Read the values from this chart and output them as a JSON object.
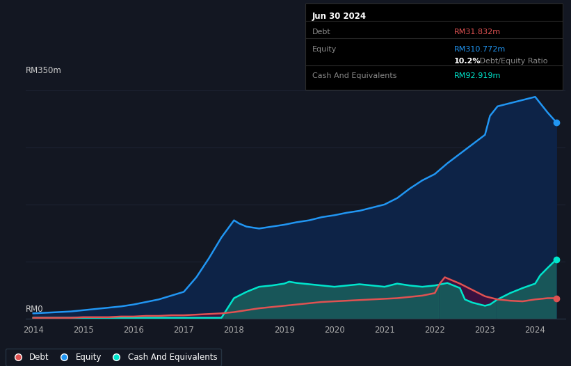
{
  "background_color": "#131722",
  "plot_bg_color": "#131722",
  "grid_color": "#1e2535",
  "line_color_debt": "#e05252",
  "line_color_equity": "#2196f3",
  "line_color_cash": "#00e5cc",
  "fill_color_equity": "#0d2347",
  "fill_color_cash": "#1a5c5c",
  "fill_color_overlap": "#3d1040",
  "tooltip_bg": "#000000",
  "tooltip_border": "#2a2a2a",
  "x_years": [
    2014,
    2015,
    2016,
    2017,
    2018,
    2019,
    2020,
    2021,
    2022,
    2023,
    2024
  ],
  "ylabel_top": "RM350m",
  "ylabel_bottom": "RM0",
  "equity_x": [
    2014.0,
    2014.25,
    2014.5,
    2014.75,
    2015.0,
    2015.25,
    2015.5,
    2015.75,
    2016.0,
    2016.25,
    2016.5,
    2016.75,
    2017.0,
    2017.25,
    2017.5,
    2017.75,
    2018.0,
    2018.1,
    2018.25,
    2018.5,
    2018.75,
    2019.0,
    2019.25,
    2019.5,
    2019.75,
    2020.0,
    2020.25,
    2020.5,
    2020.75,
    2021.0,
    2021.25,
    2021.5,
    2021.75,
    2022.0,
    2022.25,
    2022.5,
    2022.75,
    2023.0,
    2023.1,
    2023.25,
    2023.5,
    2023.75,
    2024.0,
    2024.25,
    2024.42
  ],
  "equity_y": [
    8,
    9,
    10,
    11,
    13,
    15,
    17,
    19,
    22,
    26,
    30,
    36,
    42,
    65,
    95,
    128,
    155,
    150,
    145,
    142,
    145,
    148,
    152,
    155,
    160,
    163,
    167,
    170,
    175,
    180,
    190,
    205,
    218,
    228,
    245,
    260,
    275,
    290,
    320,
    335,
    340,
    345,
    350,
    325,
    310
  ],
  "debt_x": [
    2014.0,
    2014.25,
    2014.5,
    2014.75,
    2015.0,
    2015.25,
    2015.5,
    2015.75,
    2016.0,
    2016.25,
    2016.5,
    2016.75,
    2017.0,
    2017.25,
    2017.5,
    2017.75,
    2018.0,
    2018.25,
    2018.5,
    2018.75,
    2019.0,
    2019.25,
    2019.5,
    2019.75,
    2020.0,
    2020.25,
    2020.5,
    2020.75,
    2021.0,
    2021.25,
    2021.5,
    2021.75,
    2022.0,
    2022.1,
    2022.2,
    2022.5,
    2022.75,
    2023.0,
    2023.25,
    2023.5,
    2023.75,
    2024.0,
    2024.25,
    2024.42
  ],
  "debt_y": [
    1,
    1,
    1,
    1,
    2,
    2,
    2,
    3,
    3,
    4,
    4,
    5,
    5,
    6,
    7,
    8,
    10,
    13,
    16,
    18,
    20,
    22,
    24,
    26,
    27,
    28,
    29,
    30,
    31,
    32,
    34,
    36,
    40,
    55,
    65,
    55,
    45,
    35,
    30,
    28,
    27,
    30,
    32,
    32
  ],
  "cash_x": [
    2014.0,
    2014.25,
    2014.5,
    2014.75,
    2015.0,
    2015.25,
    2015.5,
    2015.75,
    2016.0,
    2016.25,
    2016.5,
    2016.75,
    2017.0,
    2017.25,
    2017.5,
    2017.75,
    2018.0,
    2018.25,
    2018.5,
    2018.75,
    2019.0,
    2019.1,
    2019.25,
    2019.5,
    2019.75,
    2020.0,
    2020.25,
    2020.5,
    2020.75,
    2021.0,
    2021.1,
    2021.25,
    2021.5,
    2021.75,
    2022.0,
    2022.25,
    2022.5,
    2022.6,
    2022.75,
    2023.0,
    2023.1,
    2023.25,
    2023.5,
    2023.75,
    2024.0,
    2024.1,
    2024.25,
    2024.42
  ],
  "cash_y": [
    1,
    1,
    1,
    1,
    1,
    1,
    1,
    1,
    1,
    1,
    1,
    1,
    1,
    1,
    1,
    1,
    32,
    42,
    50,
    52,
    55,
    58,
    56,
    54,
    52,
    50,
    52,
    54,
    52,
    50,
    52,
    55,
    52,
    50,
    52,
    56,
    48,
    30,
    25,
    20,
    22,
    30,
    40,
    48,
    55,
    68,
    80,
    93
  ],
  "xlim": [
    2013.85,
    2024.6
  ],
  "ylim": [
    0,
    370
  ],
  "tooltip": {
    "date": "Jun 30 2024",
    "debt_label": "Debt",
    "debt_value": "RM31.832m",
    "debt_color": "#e05252",
    "equity_label": "Equity",
    "equity_value": "RM310.772m",
    "equity_color": "#2196f3",
    "ratio_bold": "10.2%",
    "ratio_text": " Debt/Equity Ratio",
    "cash_label": "Cash And Equivalents",
    "cash_value": "RM92.919m",
    "cash_color": "#00e5cc"
  },
  "legend_items": [
    "Debt",
    "Equity",
    "Cash And Equivalents"
  ],
  "legend_colors": [
    "#e05252",
    "#2196f3",
    "#00e5cc"
  ]
}
